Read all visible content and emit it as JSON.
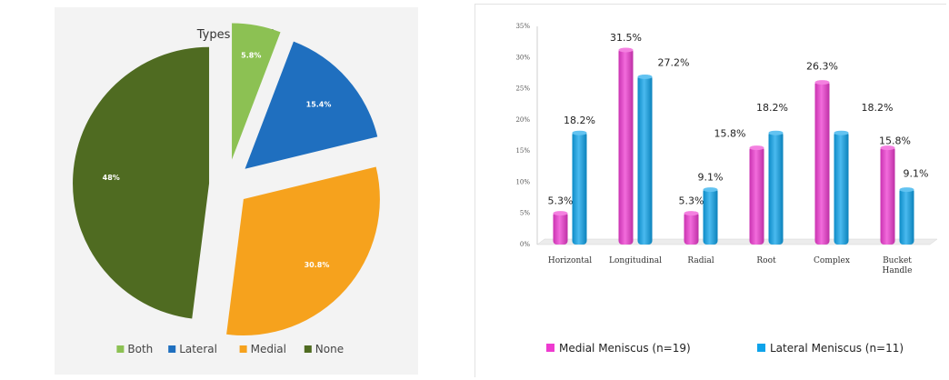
{
  "chart_data": [
    {
      "type": "pie",
      "title": "Types (n=52)",
      "categories": [
        "Both",
        "Lateral",
        "Medial",
        "None"
      ],
      "values": [
        5.8,
        15.4,
        30.8,
        48
      ],
      "labels": [
        "5.8%",
        "15.4%",
        "30.8%",
        "48%"
      ],
      "colors": [
        "#8cc153",
        "#1f6fbf",
        "#f6a21d",
        "#4f6b21"
      ],
      "legend": "bottom",
      "exploded": true
    },
    {
      "type": "bar",
      "categories": [
        "Horizontal",
        "Longitudinal",
        "Radial",
        "Root",
        "Complex",
        "Bucket Handle"
      ],
      "series": [
        {
          "name": "Medial Meniscus (n=19)",
          "values": [
            5.3,
            31.5,
            5.3,
            15.8,
            26.3,
            15.8
          ],
          "labels": [
            "5.3%",
            "31.5%",
            "5.3%",
            "15.8%",
            "26.3%",
            "15.8%"
          ],
          "color": "#ee3bd0"
        },
        {
          "name": "Lateral Meniscus (n=11)",
          "values": [
            18.2,
            27.2,
            9.1,
            18.2,
            18.2,
            9.1
          ],
          "labels": [
            "18.2%",
            "27.2%",
            "9.1%",
            "18.2%",
            "18.2%",
            "9.1%"
          ],
          "color": "#0ea3ea"
        }
      ],
      "ylim": [
        0,
        35
      ],
      "yticks": [
        "0%",
        "5%",
        "10%",
        "15%",
        "20%",
        "25%",
        "30%",
        "35%"
      ],
      "legend": "bottom",
      "grid": false
    }
  ]
}
